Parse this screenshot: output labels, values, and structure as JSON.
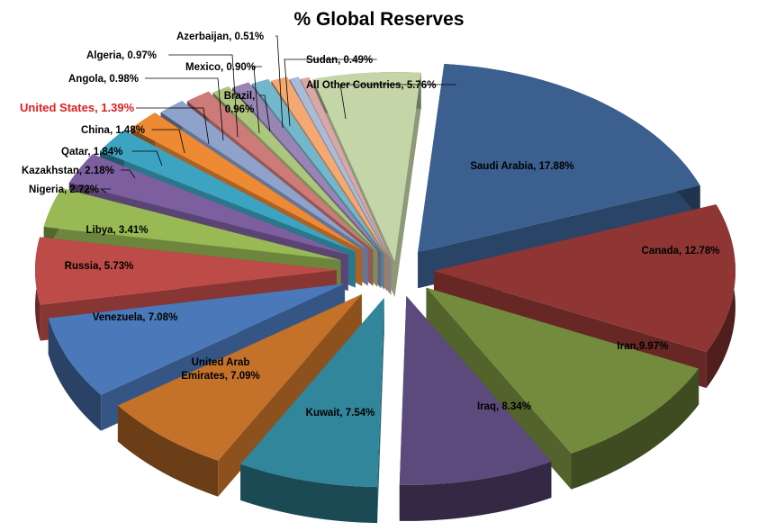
{
  "chart_data": {
    "type": "pie",
    "style": "3d-exploded",
    "title": "% Global Reserves",
    "highlight_color": "#e02020",
    "slices": [
      {
        "label": "Saudi Arabia, 17.88%",
        "name": "Saudi Arabia",
        "value": 17.88,
        "color": "#3b5f8f"
      },
      {
        "label": "Canada, 12.78%",
        "name": "Canada",
        "value": 12.78,
        "color": "#8f3634"
      },
      {
        "label": "Iran,9.97%",
        "name": "Iran",
        "value": 9.97,
        "color": "#728b3c"
      },
      {
        "label": "Iraq, 8.34%",
        "name": "Iraq",
        "value": 8.34,
        "color": "#5c4a7c"
      },
      {
        "label": "Kuwait, 7.54%",
        "name": "Kuwait",
        "value": 7.54,
        "color": "#31869b"
      },
      {
        "label": "United Arab\nEmirates, 7.09%",
        "name": "United Arab Emirates",
        "value": 7.09,
        "color": "#c4712a"
      },
      {
        "label": "Venezuela, 7.08%",
        "name": "Venezuela",
        "value": 7.08,
        "color": "#4a78b8"
      },
      {
        "label": "Russia, 5.73%",
        "name": "Russia",
        "value": 5.73,
        "color": "#bd4b48"
      },
      {
        "label": "Libya, 3.41%",
        "name": "Libya",
        "value": 3.41,
        "color": "#98b954"
      },
      {
        "label": "Nigeria, 2.72%",
        "name": "Nigeria",
        "value": 2.72,
        "color": "#7d5fa0"
      },
      {
        "label": "Kazakhstan, 2.18%",
        "name": "Kazakhstan",
        "value": 2.18,
        "color": "#3ca4c0"
      },
      {
        "label": "Qatar, 1.84%",
        "name": "Qatar",
        "value": 1.84,
        "color": "#ee8a33"
      },
      {
        "label": "China, 1.48%",
        "name": "China",
        "value": 1.48,
        "color": "#8ea2cc"
      },
      {
        "label": "United States, 1.39%",
        "name": "United States",
        "value": 1.39,
        "color": "#cc7b79",
        "highlight": true
      },
      {
        "label": "Angola, 0.98%",
        "name": "Angola",
        "value": 0.98,
        "color": "#adc67e"
      },
      {
        "label": "Algeria, 0.97%",
        "name": "Algeria",
        "value": 0.97,
        "color": "#9885b4"
      },
      {
        "label": "Brazil,\n0.96%",
        "name": "Brazil",
        "value": 0.96,
        "color": "#72b7cc"
      },
      {
        "label": "Mexico, 0.90%",
        "name": "Mexico",
        "value": 0.9,
        "color": "#f4a872"
      },
      {
        "label": "Azerbaijan, 0.51%",
        "name": "Azerbaijan",
        "value": 0.51,
        "color": "#aabbd8"
      },
      {
        "label": "Sudan, 0.49%",
        "name": "Sudan",
        "value": 0.49,
        "color": "#d9a7a6"
      },
      {
        "label": "All Other Countries, 5.76%",
        "name": "All Other Countries",
        "value": 5.76,
        "color": "#c4d6a8"
      }
    ]
  }
}
